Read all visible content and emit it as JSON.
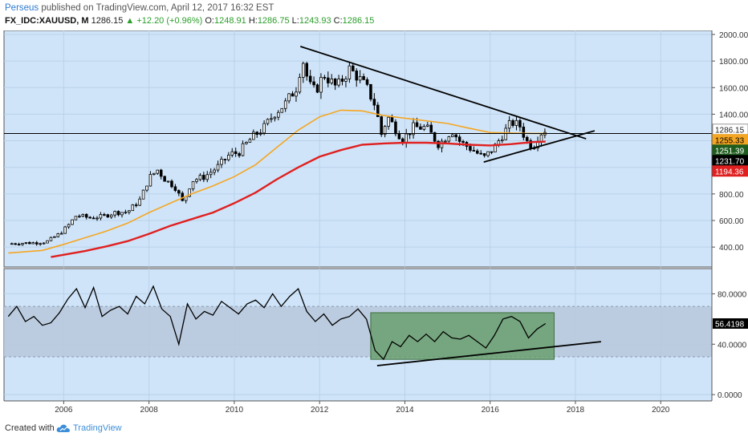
{
  "header": {
    "user": "Perseus",
    "published_text": " published on TradingView.com, April 12, 2017 16:32 EST",
    "symbol": "FX_IDC:XAUUSD, M",
    "last": "1286.15",
    "change": "▲ +12.20 (+0.96%)",
    "o_label": "O:",
    "o_value": "1248.91",
    "h_label": "H:",
    "h_value": "1286.75",
    "l_label": "L:",
    "l_value": "1243.93",
    "c_label": "C:",
    "c_value": "1286.15"
  },
  "footer": {
    "created_with": "Created with",
    "brand": "TradingView",
    "logo_icon": "tradingview-cloud-icon"
  },
  "colors": {
    "panel_bg": "#cfe4f8",
    "candle_up": "#ffffff",
    "candle_down": "#000000",
    "sma_short": "#f5a623",
    "sma_long": "#e02020",
    "rsi_band": "#b8c8dc",
    "rsi_box": "#5f9a5f",
    "trendline": "#000000"
  },
  "chart_data": [
    {
      "type": "candlestick",
      "xlabel": "",
      "ylabel": "",
      "xlim": [
        2004.6,
        2021.2
      ],
      "ylim": [
        250,
        2030
      ],
      "x_ticks": [
        2006,
        2008,
        2010,
        2012,
        2014,
        2016,
        2018,
        2020
      ],
      "x_tick_labels": [
        "2006",
        "2008",
        "2010",
        "2012",
        "2014",
        "2016",
        "2018",
        "2020"
      ],
      "y_ticks": [
        400,
        600,
        800,
        1000,
        1200,
        1400,
        1600,
        1800,
        2000
      ],
      "y_tick_labels": [
        "400.00",
        "600.00",
        "800.00",
        "1000.00",
        "1200.00",
        "1400.00",
        "1600.00",
        "1800.00",
        "2000.00"
      ],
      "grid": true,
      "close_path": [
        [
          2004.7,
          425
        ],
        [
          2005.0,
          430
        ],
        [
          2005.3,
          432
        ],
        [
          2005.6,
          440
        ],
        [
          2005.9,
          500
        ],
        [
          2006.1,
          560
        ],
        [
          2006.3,
          640
        ],
        [
          2006.6,
          620
        ],
        [
          2006.9,
          630
        ],
        [
          2007.2,
          660
        ],
        [
          2007.5,
          665
        ],
        [
          2007.8,
          760
        ],
        [
          2008.0,
          920
        ],
        [
          2008.2,
          980
        ],
        [
          2008.4,
          900
        ],
        [
          2008.6,
          860
        ],
        [
          2008.8,
          730
        ],
        [
          2009.0,
          900
        ],
        [
          2009.3,
          930
        ],
        [
          2009.6,
          1000
        ],
        [
          2009.9,
          1100
        ],
        [
          2010.1,
          1110
        ],
        [
          2010.4,
          1220
        ],
        [
          2010.7,
          1300
        ],
        [
          2010.95,
          1410
        ],
        [
          2011.2,
          1480
        ],
        [
          2011.45,
          1600
        ],
        [
          2011.6,
          1820
        ],
        [
          2011.75,
          1620
        ],
        [
          2011.9,
          1570
        ],
        [
          2012.1,
          1700
        ],
        [
          2012.4,
          1600
        ],
        [
          2012.7,
          1740
        ],
        [
          2012.9,
          1680
        ],
        [
          2013.1,
          1600
        ],
        [
          2013.3,
          1470
        ],
        [
          2013.45,
          1250
        ],
        [
          2013.6,
          1380
        ],
        [
          2013.8,
          1280
        ],
        [
          2013.95,
          1210
        ],
        [
          2014.2,
          1300
        ],
        [
          2014.5,
          1300
        ],
        [
          2014.8,
          1170
        ],
        [
          2015.1,
          1280
        ],
        [
          2015.3,
          1190
        ],
        [
          2015.6,
          1130
        ],
        [
          2015.85,
          1070
        ],
        [
          2016.1,
          1150
        ],
        [
          2016.3,
          1250
        ],
        [
          2016.5,
          1340
        ],
        [
          2016.7,
          1310
        ],
        [
          2016.85,
          1200
        ],
        [
          2017.0,
          1150
        ],
        [
          2017.15,
          1250
        ],
        [
          2017.3,
          1286
        ]
      ],
      "series": [
        {
          "name": "",
          "role": "sma_short",
          "points": [
            [
              2004.7,
              355
            ],
            [
              2005.5,
              375
            ],
            [
              2006.0,
              420
            ],
            [
              2006.5,
              470
            ],
            [
              2007.0,
              520
            ],
            [
              2007.5,
              580
            ],
            [
              2008.0,
              660
            ],
            [
              2008.5,
              730
            ],
            [
              2009.0,
              800
            ],
            [
              2009.5,
              860
            ],
            [
              2010.0,
              930
            ],
            [
              2010.5,
              1020
            ],
            [
              2011.0,
              1150
            ],
            [
              2011.5,
              1280
            ],
            [
              2012.0,
              1380
            ],
            [
              2012.5,
              1430
            ],
            [
              2013.0,
              1425
            ],
            [
              2013.5,
              1390
            ],
            [
              2014.0,
              1370
            ],
            [
              2014.5,
              1350
            ],
            [
              2015.0,
              1330
            ],
            [
              2015.5,
              1295
            ],
            [
              2016.0,
              1262
            ],
            [
              2016.5,
              1258
            ],
            [
              2017.0,
              1255
            ],
            [
              2017.3,
              1255
            ]
          ]
        },
        {
          "name": "",
          "role": "sma_long",
          "points": [
            [
              2005.7,
              325
            ],
            [
              2006.5,
              370
            ],
            [
              2007.0,
              405
            ],
            [
              2007.5,
              445
            ],
            [
              2008.0,
              500
            ],
            [
              2008.5,
              560
            ],
            [
              2009.0,
              610
            ],
            [
              2009.5,
              660
            ],
            [
              2010.0,
              730
            ],
            [
              2010.5,
              810
            ],
            [
              2011.0,
              910
            ],
            [
              2011.5,
              1000
            ],
            [
              2012.0,
              1080
            ],
            [
              2012.5,
              1130
            ],
            [
              2013.0,
              1170
            ],
            [
              2013.5,
              1180
            ],
            [
              2014.0,
              1185
            ],
            [
              2014.5,
              1185
            ],
            [
              2015.0,
              1180
            ],
            [
              2015.5,
              1170
            ],
            [
              2016.0,
              1165
            ],
            [
              2016.5,
              1175
            ],
            [
              2017.0,
              1190
            ],
            [
              2017.3,
              1194
            ]
          ]
        }
      ],
      "trendlines": [
        {
          "from": [
            2011.55,
            1910
          ],
          "to": [
            2018.25,
            1215
          ]
        },
        {
          "from": [
            2015.85,
            1040
          ],
          "to": [
            2018.45,
            1275
          ]
        },
        {
          "from": [
            2004.6,
            1255
          ],
          "to": [
            2021.2,
            1255
          ]
        }
      ],
      "price_labels": [
        {
          "value": 1286.15,
          "text": "1286.15",
          "bg": "#ffffff",
          "fg": "#222222"
        },
        {
          "value": 1255.33,
          "text": "1255.33",
          "bg": "#f5a623",
          "fg": "#000000"
        },
        {
          "value": 1251.39,
          "text": "1251.39",
          "bg": "#1f5d1f",
          "fg": "#ffffff"
        },
        {
          "value": 1231.7,
          "text": "1231.70",
          "bg": "#000000",
          "fg": "#ffffff"
        },
        {
          "value": 1194.36,
          "text": "1194.36",
          "bg": "#e02020",
          "fg": "#ffffff"
        }
      ]
    },
    {
      "type": "line",
      "xlabel": "",
      "ylabel": "",
      "ylim": [
        -5,
        100
      ],
      "y_ticks": [
        0,
        40,
        80
      ],
      "y_tick_labels": [
        "0.0000",
        "40.0000",
        "80.0000"
      ],
      "band": [
        30,
        70
      ],
      "series": [
        {
          "name": "",
          "role": "rsi",
          "points": [
            [
              2004.7,
              62
            ],
            [
              2004.9,
              70
            ],
            [
              2005.1,
              58
            ],
            [
              2005.3,
              62
            ],
            [
              2005.5,
              55
            ],
            [
              2005.7,
              57
            ],
            [
              2005.9,
              65
            ],
            [
              2006.1,
              76
            ],
            [
              2006.3,
              84
            ],
            [
              2006.5,
              69
            ],
            [
              2006.7,
              85
            ],
            [
              2006.9,
              62
            ],
            [
              2007.1,
              67
            ],
            [
              2007.3,
              70
            ],
            [
              2007.5,
              64
            ],
            [
              2007.7,
              78
            ],
            [
              2007.9,
              72
            ],
            [
              2008.1,
              86
            ],
            [
              2008.3,
              68
            ],
            [
              2008.5,
              62
            ],
            [
              2008.7,
              40
            ],
            [
              2008.9,
              72
            ],
            [
              2009.1,
              60
            ],
            [
              2009.3,
              66
            ],
            [
              2009.5,
              63
            ],
            [
              2009.7,
              74
            ],
            [
              2009.9,
              69
            ],
            [
              2010.1,
              64
            ],
            [
              2010.3,
              72
            ],
            [
              2010.5,
              75
            ],
            [
              2010.7,
              69
            ],
            [
              2010.9,
              80
            ],
            [
              2011.1,
              70
            ],
            [
              2011.3,
              78
            ],
            [
              2011.5,
              84
            ],
            [
              2011.7,
              66
            ],
            [
              2011.9,
              58
            ],
            [
              2012.1,
              64
            ],
            [
              2012.3,
              55
            ],
            [
              2012.5,
              60
            ],
            [
              2012.7,
              62
            ],
            [
              2012.9,
              68
            ],
            [
              2013.1,
              60
            ],
            [
              2013.3,
              35
            ],
            [
              2013.5,
              28
            ],
            [
              2013.7,
              42
            ],
            [
              2013.9,
              38
            ],
            [
              2014.1,
              47
            ],
            [
              2014.3,
              42
            ],
            [
              2014.5,
              48
            ],
            [
              2014.7,
              42
            ],
            [
              2014.9,
              50
            ],
            [
              2015.1,
              45
            ],
            [
              2015.3,
              44
            ],
            [
              2015.5,
              47
            ],
            [
              2015.7,
              42
            ],
            [
              2015.9,
              37
            ],
            [
              2016.1,
              47
            ],
            [
              2016.3,
              60
            ],
            [
              2016.5,
              62
            ],
            [
              2016.7,
              58
            ],
            [
              2016.9,
              45
            ],
            [
              2017.1,
              52
            ],
            [
              2017.3,
              56.42
            ]
          ]
        }
      ],
      "box": {
        "x": [
          2013.2,
          2017.5
        ],
        "y": [
          28,
          65
        ]
      },
      "trendlines": [
        {
          "from": [
            2013.35,
            23
          ],
          "to": [
            2018.6,
            42
          ]
        }
      ],
      "value_label": {
        "value": 56.4198,
        "text": "56.4198"
      }
    }
  ]
}
